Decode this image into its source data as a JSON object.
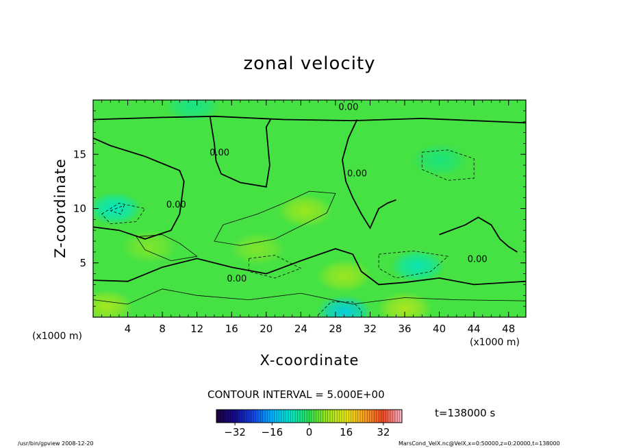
{
  "chart_data": {
    "type": "heatmap",
    "title": "zonal velocity",
    "xlabel": "X-coordinate",
    "ylabel": "Z-coordinate",
    "x_unit_label": "(x1000 m)",
    "xlim": [
      0,
      50
    ],
    "ylim": [
      0,
      20
    ],
    "x_ticks": [
      4,
      8,
      12,
      16,
      20,
      24,
      28,
      32,
      36,
      40,
      44,
      48
    ],
    "y_ticks": [
      5,
      10,
      15
    ],
    "contour_labels": [
      {
        "x": 29.5,
        "y": 19.3,
        "text": "0.00"
      },
      {
        "x": 14.6,
        "y": 15.1,
        "text": "0.00"
      },
      {
        "x": 9.6,
        "y": 10.3,
        "text": "0.00"
      },
      {
        "x": 16.6,
        "y": 3.5,
        "text": "0.00"
      },
      {
        "x": 30.5,
        "y": 13.2,
        "text": "0.00"
      },
      {
        "x": 44.4,
        "y": 5.3,
        "text": "0.00"
      }
    ],
    "contour_interval_text": "CONTOUR INTERVAL = 5.000E+00",
    "colorbar": {
      "min": -40,
      "max": 40,
      "ticks": [
        -32,
        -16,
        0,
        16,
        32
      ],
      "tick_labels": [
        "−32",
        "−16",
        "0",
        "16",
        "32"
      ]
    },
    "time_text": "t=138000 s",
    "footer_left": "/usr/bin/gpview   2008-12-20",
    "footer_right": "MarsCond_VelX.nc@VelX,x=0:50000,z=0:20000,t=138000",
    "field_description_values": {
      "background_mps": 2,
      "blobs_mps": [
        {
          "x": 24.5,
          "y": 9.8,
          "value": 8
        },
        {
          "x": 19.0,
          "y": 6.3,
          "value": 6
        },
        {
          "x": 6.5,
          "y": 6.5,
          "value": 6
        },
        {
          "x": 29.0,
          "y": 3.8,
          "value": 8
        },
        {
          "x": 2.5,
          "y": 10.0,
          "value": -8
        },
        {
          "x": 29.0,
          "y": 0.5,
          "value": -12
        },
        {
          "x": 37.5,
          "y": 4.7,
          "value": -7
        },
        {
          "x": 40.0,
          "y": 14.5,
          "value": -3
        },
        {
          "x": 1.5,
          "y": 1.0,
          "value": 9
        },
        {
          "x": 36.0,
          "y": 0.8,
          "value": 10
        },
        {
          "x": 11.5,
          "y": 19.5,
          "value": -4
        }
      ]
    }
  }
}
